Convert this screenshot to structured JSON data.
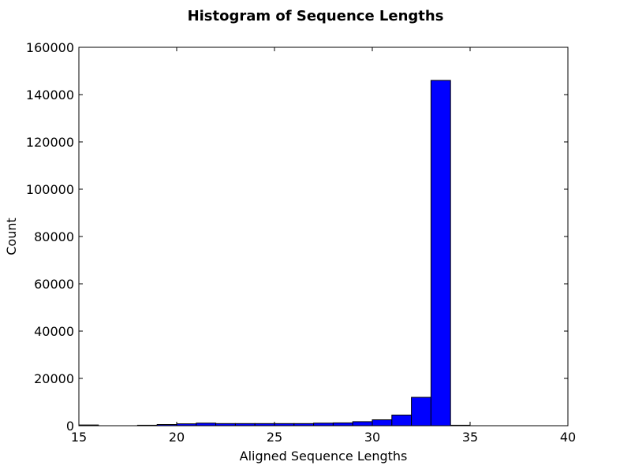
{
  "chart_data": {
    "type": "bar",
    "title": "Histogram of Sequence Lengths",
    "xlabel": "Aligned Sequence Lengths",
    "ylabel": "Count",
    "xlim": [
      15,
      40
    ],
    "ylim": [
      0,
      160000
    ],
    "xticks": [
      "15",
      "20",
      "25",
      "30",
      "35",
      "40"
    ],
    "yticks": [
      "0",
      "20000",
      "40000",
      "60000",
      "80000",
      "100000",
      "120000",
      "140000",
      "160000"
    ],
    "bins": [
      {
        "start": 15,
        "end": 16,
        "count": 300
      },
      {
        "start": 16,
        "end": 17,
        "count": 0
      },
      {
        "start": 17,
        "end": 18,
        "count": 0
      },
      {
        "start": 18,
        "end": 19,
        "count": 200
      },
      {
        "start": 19,
        "end": 20,
        "count": 500
      },
      {
        "start": 20,
        "end": 21,
        "count": 800
      },
      {
        "start": 21,
        "end": 22,
        "count": 1100
      },
      {
        "start": 22,
        "end": 23,
        "count": 900
      },
      {
        "start": 23,
        "end": 24,
        "count": 900
      },
      {
        "start": 24,
        "end": 25,
        "count": 900
      },
      {
        "start": 25,
        "end": 26,
        "count": 900
      },
      {
        "start": 26,
        "end": 27,
        "count": 900
      },
      {
        "start": 27,
        "end": 28,
        "count": 1100
      },
      {
        "start": 28,
        "end": 29,
        "count": 1200
      },
      {
        "start": 29,
        "end": 30,
        "count": 1700
      },
      {
        "start": 30,
        "end": 31,
        "count": 2500
      },
      {
        "start": 31,
        "end": 32,
        "count": 4500
      },
      {
        "start": 32,
        "end": 33,
        "count": 12000
      },
      {
        "start": 33,
        "end": 34,
        "count": 146000
      },
      {
        "start": 34,
        "end": 35,
        "count": 200
      },
      {
        "start": 35,
        "end": 36,
        "count": 0
      },
      {
        "start": 36,
        "end": 37,
        "count": 0
      },
      {
        "start": 37,
        "end": 38,
        "count": 0
      },
      {
        "start": 38,
        "end": 39,
        "count": 0
      }
    ],
    "colors": {
      "bar_fill": "#0000ff",
      "bar_edge": "#000000",
      "axes": "#000000"
    }
  }
}
